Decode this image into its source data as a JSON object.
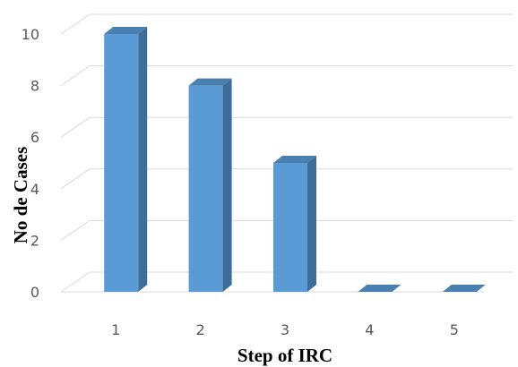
{
  "chart_data": {
    "type": "bar",
    "style": "3d-column",
    "categories": [
      "1",
      "2",
      "3",
      "4",
      "5"
    ],
    "values": [
      10,
      8,
      5,
      0,
      0
    ],
    "xlabel": "Step of IRC",
    "ylabel": "No de Cases",
    "ylim": [
      0,
      10
    ],
    "y_ticks": [
      "0",
      "2",
      "4",
      "6",
      "8",
      "10"
    ],
    "grid": true,
    "legend": "none"
  },
  "colors": {
    "bar_front": "#5b9bd5",
    "bar_side": "#3d6d98",
    "bar_top": "#4a7fb0",
    "grid": "#d9d9d9",
    "tick_text": "#595959",
    "title_text": "#000000"
  }
}
